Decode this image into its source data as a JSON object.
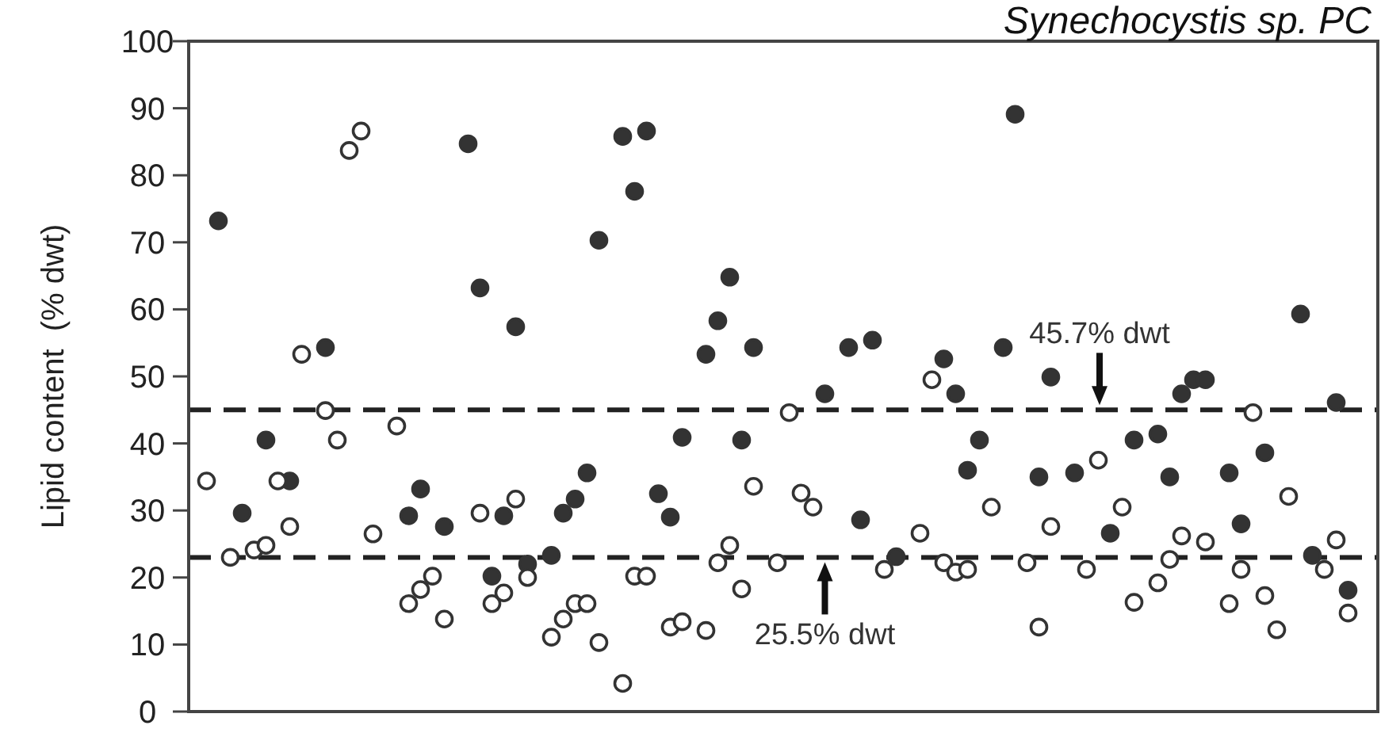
{
  "chart_data": {
    "type": "scatter",
    "title": "Synechocystis sp. PC",
    "ylabel": "Lipid content  (% dwt)",
    "ylim": [
      0,
      100
    ],
    "yticks": [
      0,
      10,
      20,
      30,
      40,
      50,
      60,
      70,
      80,
      90,
      100
    ],
    "tick_labels": "y",
    "marker": "circle",
    "categories": [
      null,
      null,
      null,
      null,
      null,
      null,
      null,
      null,
      null,
      null,
      null,
      null,
      null,
      null,
      null,
      null,
      null,
      null,
      null,
      null,
      null,
      null,
      null,
      null,
      null,
      null,
      null,
      null,
      null,
      null,
      null,
      null,
      null,
      null,
      null,
      null,
      null,
      null,
      null,
      null,
      null,
      null,
      null,
      null,
      null,
      null,
      null,
      null,
      null,
      null,
      null,
      null,
      null,
      null,
      null,
      null,
      null,
      null,
      null,
      null,
      null,
      null,
      null,
      null,
      null,
      null,
      null,
      null,
      null,
      null,
      null,
      null,
      null,
      null,
      null,
      null,
      null,
      null,
      null,
      null,
      null,
      null,
      null,
      null,
      null,
      null,
      null,
      null,
      null,
      null,
      null,
      null,
      null,
      null,
      null,
      null,
      null,
      null,
      null,
      null
    ],
    "series": [
      {
        "color": "#333333",
        "values": [
          null,
          null,
          73.2,
          null,
          29.6,
          null,
          40.5,
          null,
          34.4,
          null,
          null,
          54.3,
          null,
          null,
          null,
          null,
          null,
          null,
          29.2,
          33.2,
          null,
          27.6,
          null,
          84.7,
          63.2,
          20.2,
          29.2,
          57.4,
          22.0,
          null,
          23.3,
          29.6,
          31.7,
          35.6,
          70.3,
          null,
          85.8,
          77.6,
          86.6,
          32.5,
          29.0,
          40.9,
          null,
          53.3,
          58.3,
          64.8,
          40.5,
          54.3,
          null,
          null,
          null,
          null,
          null,
          47.4,
          null,
          54.3,
          28.6,
          55.4,
          null,
          23.1,
          null,
          null,
          null,
          52.6,
          47.4,
          36.0,
          40.5,
          null,
          54.3,
          89.1,
          null,
          35.0,
          49.9,
          null,
          35.6,
          null,
          null,
          26.6,
          null,
          40.5,
          null,
          41.4,
          35.0,
          47.4,
          49.5,
          49.5,
          null,
          35.6,
          28.0,
          null,
          38.6,
          null,
          null,
          59.3,
          23.3,
          null,
          46.1,
          18.1,
          null,
          null
        ]
      },
      {
        "color": "#ffffff",
        "values": [
          null,
          34.4,
          null,
          23.0,
          null,
          24.1,
          24.8,
          34.4,
          27.6,
          53.3,
          null,
          44.9,
          40.5,
          83.7,
          86.6,
          26.5,
          null,
          42.6,
          16.1,
          18.2,
          20.2,
          13.8,
          null,
          null,
          29.6,
          16.1,
          17.7,
          31.7,
          20.0,
          null,
          11.1,
          13.8,
          16.1,
          16.1,
          10.3,
          null,
          4.2,
          20.2,
          20.2,
          null,
          12.6,
          13.4,
          null,
          12.1,
          22.2,
          24.8,
          18.3,
          33.6,
          null,
          22.2,
          44.6,
          32.6,
          30.5,
          null,
          null,
          null,
          null,
          null,
          21.2,
          null,
          null,
          26.6,
          49.5,
          22.2,
          20.8,
          21.2,
          null,
          30.5,
          null,
          null,
          22.2,
          12.6,
          27.6,
          null,
          null,
          21.2,
          37.5,
          null,
          30.5,
          16.3,
          null,
          19.2,
          22.7,
          26.2,
          null,
          25.3,
          null,
          16.1,
          21.2,
          44.6,
          17.3,
          12.2,
          32.1,
          null,
          null,
          21.2,
          25.6,
          14.7,
          null,
          null
        ]
      }
    ],
    "ref_lines": [
      {
        "axis": "y",
        "value": 45,
        "line_style": "dashed",
        "color": "#222222",
        "label": "45.7% dwt"
      },
      {
        "axis": "y",
        "value": 23,
        "line_style": "dashed",
        "color": "#222222",
        "label": "25.5% dwt"
      }
    ]
  }
}
